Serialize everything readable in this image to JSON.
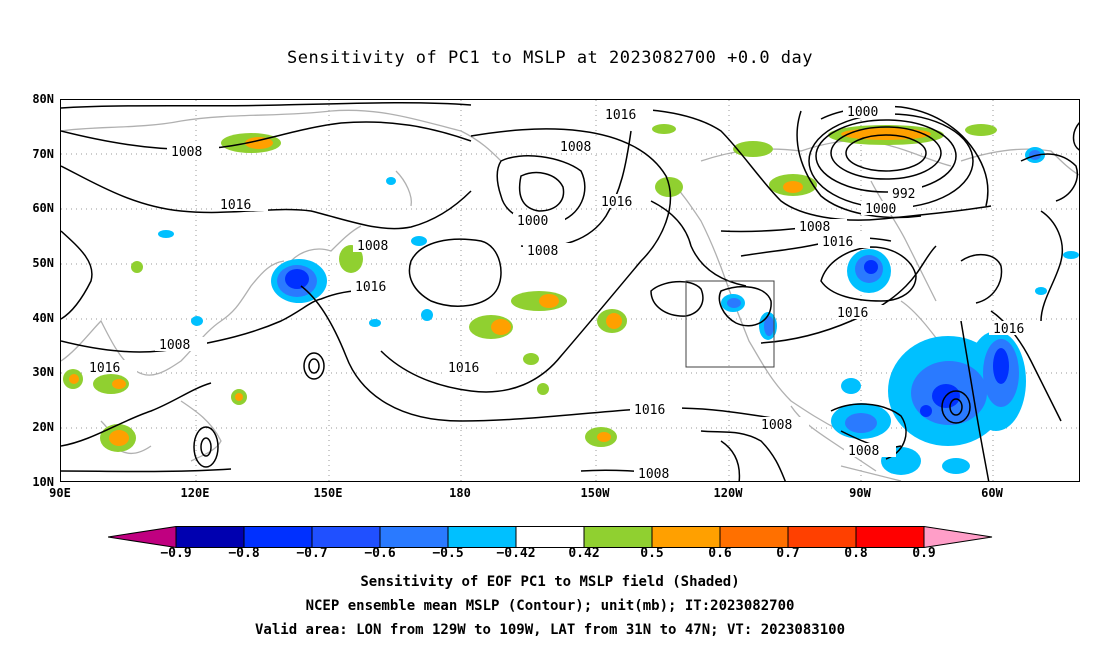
{
  "title": "Sensitivity of PC1 to MSLP at 2023082700 +0.0 day",
  "lat_labels": [
    "80N",
    "70N",
    "60N",
    "50N",
    "40N",
    "30N",
    "20N",
    "10N"
  ],
  "lon_labels": [
    "90E",
    "120E",
    "150E",
    "180",
    "150W",
    "120W",
    "90W",
    "60W"
  ],
  "contour_labels": [
    "1016",
    "1008",
    "1000",
    "1008",
    "1016",
    "1008",
    "1016",
    "1000",
    "992",
    "1000",
    "1008",
    "1016",
    "1008",
    "1016",
    "1016",
    "1008",
    "1016",
    "1016",
    "1016",
    "1008",
    "1008",
    "1008",
    "1016"
  ],
  "colorbar": {
    "labels": [
      "−0.9",
      "−0.8",
      "−0.7",
      "−0.6",
      "−0.5",
      "−0.42",
      "0.42",
      "0.5",
      "0.6",
      "0.7",
      "0.8",
      "0.9"
    ],
    "colors": [
      "#c00080",
      "#0000b0",
      "#0030ff",
      "#2050ff",
      "#2a7aff",
      "#00c0ff",
      "#ffffff",
      "#90d030",
      "#ffa000",
      "#ff7000",
      "#ff4000",
      "#ff0000",
      "#ff9ec8"
    ]
  },
  "footer": [
    "Sensitivity of EOF PC1 to MSLP field (Shaded)",
    "NCEP ensemble mean MSLP (Contour); unit(mb); IT:2023082700",
    "Valid area: LON from 129W to 109W, LAT from 31N to 47N; VT: 2023083100"
  ],
  "valid_area": {
    "lon_from": "129W",
    "lon_to": "109W",
    "lat_from": "31N",
    "lat_to": "47N"
  }
}
